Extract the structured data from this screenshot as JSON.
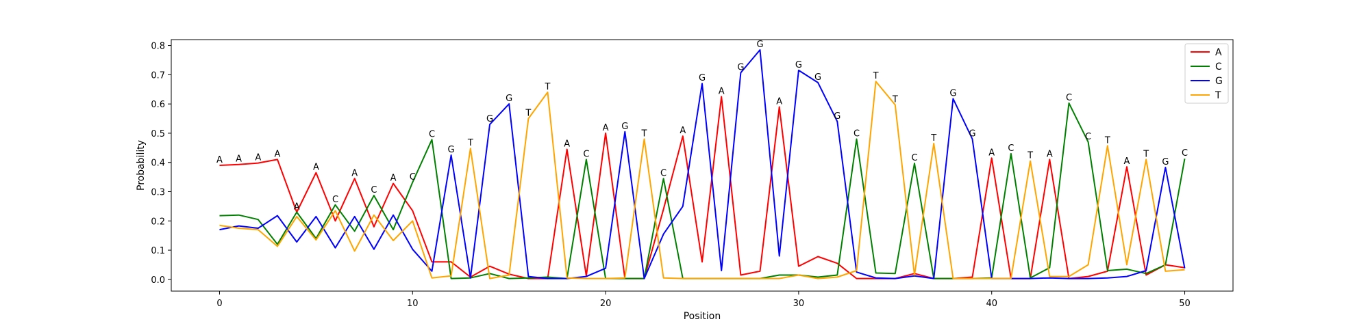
{
  "chart_data": {
    "type": "line",
    "xlabel": "Position",
    "ylabel": "Probability",
    "xlim": [
      -2.5,
      52.5
    ],
    "ylim": [
      -0.04,
      0.82
    ],
    "xticks": [
      0,
      10,
      20,
      30,
      40,
      50
    ],
    "yticks": [
      0.0,
      0.1,
      0.2,
      0.3,
      0.4,
      0.5,
      0.6,
      0.7,
      0.8
    ],
    "grid": false,
    "legend_position": "top-right",
    "colors": {
      "A": "#ff0000",
      "C": "#008000",
      "G": "#0000ff",
      "T": "#ffa500"
    },
    "x": [
      0,
      1,
      2,
      3,
      4,
      5,
      6,
      7,
      8,
      9,
      10,
      11,
      12,
      13,
      14,
      15,
      16,
      17,
      18,
      19,
      20,
      21,
      22,
      23,
      24,
      25,
      26,
      27,
      28,
      29,
      30,
      31,
      32,
      33,
      34,
      35,
      36,
      37,
      38,
      39,
      40,
      41,
      42,
      43,
      44,
      45,
      46,
      47,
      48,
      49,
      50
    ],
    "series": [
      {
        "name": "A",
        "values": [
          0.39,
          0.393,
          0.398,
          0.41,
          0.23,
          0.365,
          0.2,
          0.345,
          0.18,
          0.328,
          0.235,
          0.06,
          0.06,
          0.008,
          0.045,
          0.018,
          0.003,
          0.003,
          0.445,
          0.012,
          0.5,
          0.003,
          0.003,
          0.24,
          0.49,
          0.06,
          0.625,
          0.015,
          0.028,
          0.59,
          0.045,
          0.078,
          0.055,
          0.003,
          0.003,
          0.003,
          0.02,
          0.003,
          0.003,
          0.008,
          0.415,
          0.003,
          0.003,
          0.41,
          0.003,
          0.01,
          0.028,
          0.385,
          0.015,
          0.05,
          0.04
        ]
      },
      {
        "name": "C",
        "values": [
          0.218,
          0.22,
          0.205,
          0.12,
          0.23,
          0.14,
          0.255,
          0.165,
          0.287,
          0.17,
          0.332,
          0.478,
          0.003,
          0.005,
          0.02,
          0.003,
          0.005,
          0.008,
          0.003,
          0.41,
          0.003,
          0.003,
          0.003,
          0.345,
          0.003,
          0.003,
          0.003,
          0.003,
          0.003,
          0.015,
          0.015,
          0.008,
          0.015,
          0.48,
          0.022,
          0.02,
          0.397,
          0.003,
          0.003,
          0.003,
          0.005,
          0.43,
          0.005,
          0.04,
          0.603,
          0.47,
          0.03,
          0.035,
          0.02,
          0.05,
          0.413
        ]
      },
      {
        "name": "G",
        "values": [
          0.17,
          0.183,
          0.175,
          0.218,
          0.128,
          0.215,
          0.108,
          0.215,
          0.103,
          0.22,
          0.103,
          0.028,
          0.425,
          0.005,
          0.53,
          0.6,
          0.01,
          0.003,
          0.003,
          0.01,
          0.038,
          0.505,
          0.003,
          0.155,
          0.25,
          0.67,
          0.03,
          0.707,
          0.785,
          0.08,
          0.715,
          0.673,
          0.54,
          0.025,
          0.005,
          0.003,
          0.012,
          0.003,
          0.618,
          0.48,
          0.003,
          0.003,
          0.003,
          0.005,
          0.003,
          0.003,
          0.005,
          0.01,
          0.03,
          0.383,
          0.038
        ]
      },
      {
        "name": "T",
        "values": [
          0.185,
          0.175,
          0.17,
          0.113,
          0.215,
          0.135,
          0.235,
          0.097,
          0.22,
          0.133,
          0.2,
          0.005,
          0.012,
          0.448,
          0.003,
          0.015,
          0.55,
          0.64,
          0.005,
          0.003,
          0.003,
          0.005,
          0.48,
          0.005,
          0.003,
          0.003,
          0.003,
          0.003,
          0.003,
          0.003,
          0.015,
          0.003,
          0.008,
          0.03,
          0.677,
          0.597,
          0.015,
          0.465,
          0.003,
          0.003,
          0.003,
          0.003,
          0.405,
          0.01,
          0.01,
          0.05,
          0.457,
          0.05,
          0.41,
          0.028,
          0.033
        ]
      }
    ],
    "annotations": {
      "labels": [
        "A",
        "A",
        "A",
        "A",
        "A",
        "A",
        "C",
        "A",
        "C",
        "A",
        "C",
        "C",
        "G",
        "T",
        "G",
        "G",
        "T",
        "T",
        "A",
        "C",
        "A",
        "G",
        "T",
        "C",
        "A",
        "G",
        "A",
        "G",
        "G",
        "A",
        "G",
        "G",
        "G",
        "C",
        "T",
        "T",
        "C",
        "T",
        "G",
        "G",
        "A",
        "C",
        "T",
        "A",
        "C",
        "C",
        "T",
        "A",
        "T",
        "G",
        "C"
      ],
      "values": [
        0.39,
        0.393,
        0.398,
        0.41,
        0.23,
        0.365,
        0.255,
        0.345,
        0.287,
        0.328,
        0.332,
        0.478,
        0.425,
        0.448,
        0.53,
        0.6,
        0.55,
        0.64,
        0.445,
        0.41,
        0.5,
        0.505,
        0.48,
        0.345,
        0.49,
        0.67,
        0.625,
        0.707,
        0.785,
        0.59,
        0.715,
        0.673,
        0.54,
        0.48,
        0.677,
        0.597,
        0.397,
        0.465,
        0.618,
        0.48,
        0.415,
        0.43,
        0.405,
        0.41,
        0.603,
        0.47,
        0.457,
        0.385,
        0.41,
        0.383,
        0.413
      ]
    }
  }
}
